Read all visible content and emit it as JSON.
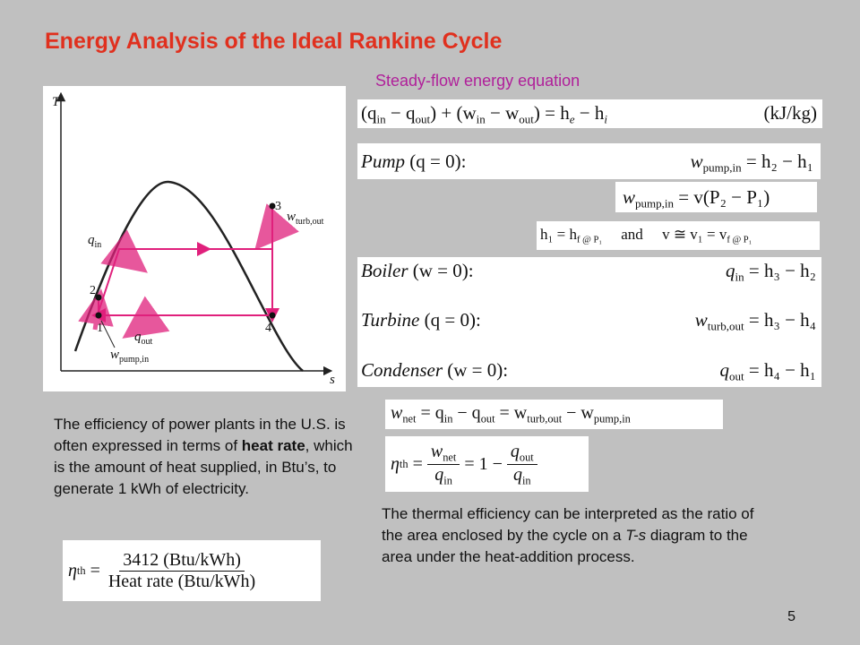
{
  "slide": {
    "title": "Energy Analysis of the Ideal Rankine Cycle",
    "subtitle": "Steady-flow energy equation",
    "page_number": "5"
  },
  "diagram": {
    "axis_t": "T",
    "axis_s": "s",
    "point_labels": [
      "1",
      "2",
      "3",
      "4"
    ],
    "q_in": "q",
    "q_in_sub": "in",
    "q_out": "q",
    "q_out_sub": "out",
    "w_turb": "w",
    "w_turb_sub": "turb,out",
    "w_pump": "w",
    "w_pump_sub": "pump,in",
    "colors": {
      "process": "#e0207c",
      "dome": "#222222",
      "point": "#111111"
    }
  },
  "equations": {
    "energy": {
      "lhs": "(q",
      "lhs_sub": "in",
      "minus_q": "− q",
      "out_sub": "out",
      "plus": ") + (w",
      "w_in_sub": "in",
      "minus_w": "− w",
      "w_out_sub": "out",
      "eq": ") = h",
      "he_sub": "e",
      "minus_h": "− h",
      "hi_sub": "i",
      "units": "(kJ/kg)"
    },
    "pump": {
      "label": "Pump",
      "cond": "(q = 0):",
      "rhs": "w",
      "rhs_sub": "pump,in",
      "rhs_tail": "= h₂ − h₁"
    },
    "pump2": {
      "lhs": "w",
      "lhs_sub": "pump,in",
      "rhs": "= v(P₂ − P₁)"
    },
    "h1": {
      "left": "h₁ = h",
      "left_sub": "f @ P₁",
      "and": "and",
      "right": "v ≅ v₁ = v",
      "right_sub": "f @ P₁"
    },
    "boiler": {
      "label": "Boiler",
      "cond": "(w = 0):",
      "rhs": "q",
      "rhs_sub": "in",
      "rhs_tail": "= h₃ − h₂"
    },
    "turbine": {
      "label": "Turbine",
      "cond": "(q = 0):",
      "rhs": "w",
      "rhs_sub": "turb,out",
      "rhs_tail": "= h₃ − h₄"
    },
    "condenser": {
      "label": "Condenser",
      "cond": "(w = 0):",
      "rhs": "q",
      "rhs_sub": "out",
      "rhs_tail": "= h₄ − h₁"
    },
    "wnet": {
      "text_a": "w",
      "sub_a": "net",
      "text_b": "= q",
      "sub_b": "in",
      "text_c": "− q",
      "sub_c": "out",
      "text_d": "= w",
      "sub_d": "turb,out",
      "text_e": "− w",
      "sub_e": "pump,in"
    },
    "eta": {
      "eta": "η",
      "eta_sub": "th",
      "num1": "w",
      "num1_sub": "net",
      "den1": "q",
      "den1_sub": "in",
      "mid": "= 1 −",
      "num2": "q",
      "num2_sub": "out",
      "den2": "q",
      "den2_sub": "in"
    },
    "heatrate": {
      "eta": "η",
      "eta_sub": "th",
      "num": "3412 (Btu/kWh)",
      "den": "Heat rate (Btu/kWh)"
    }
  },
  "text": {
    "heat_rate_para_1": "The efficiency of power plants in the U.S. is often expressed in terms of ",
    "heat_rate_bold": "heat rate",
    "heat_rate_para_2": ", which is the amount of heat supplied, in Btu’s, to generate 1 kWh of electricity.",
    "thermal_para_1": "The thermal efficiency can be interpreted as the ratio of the area enclosed by the cycle on a ",
    "thermal_ts": "T-s",
    "thermal_para_2": " diagram to the area under the heat-addition process."
  }
}
